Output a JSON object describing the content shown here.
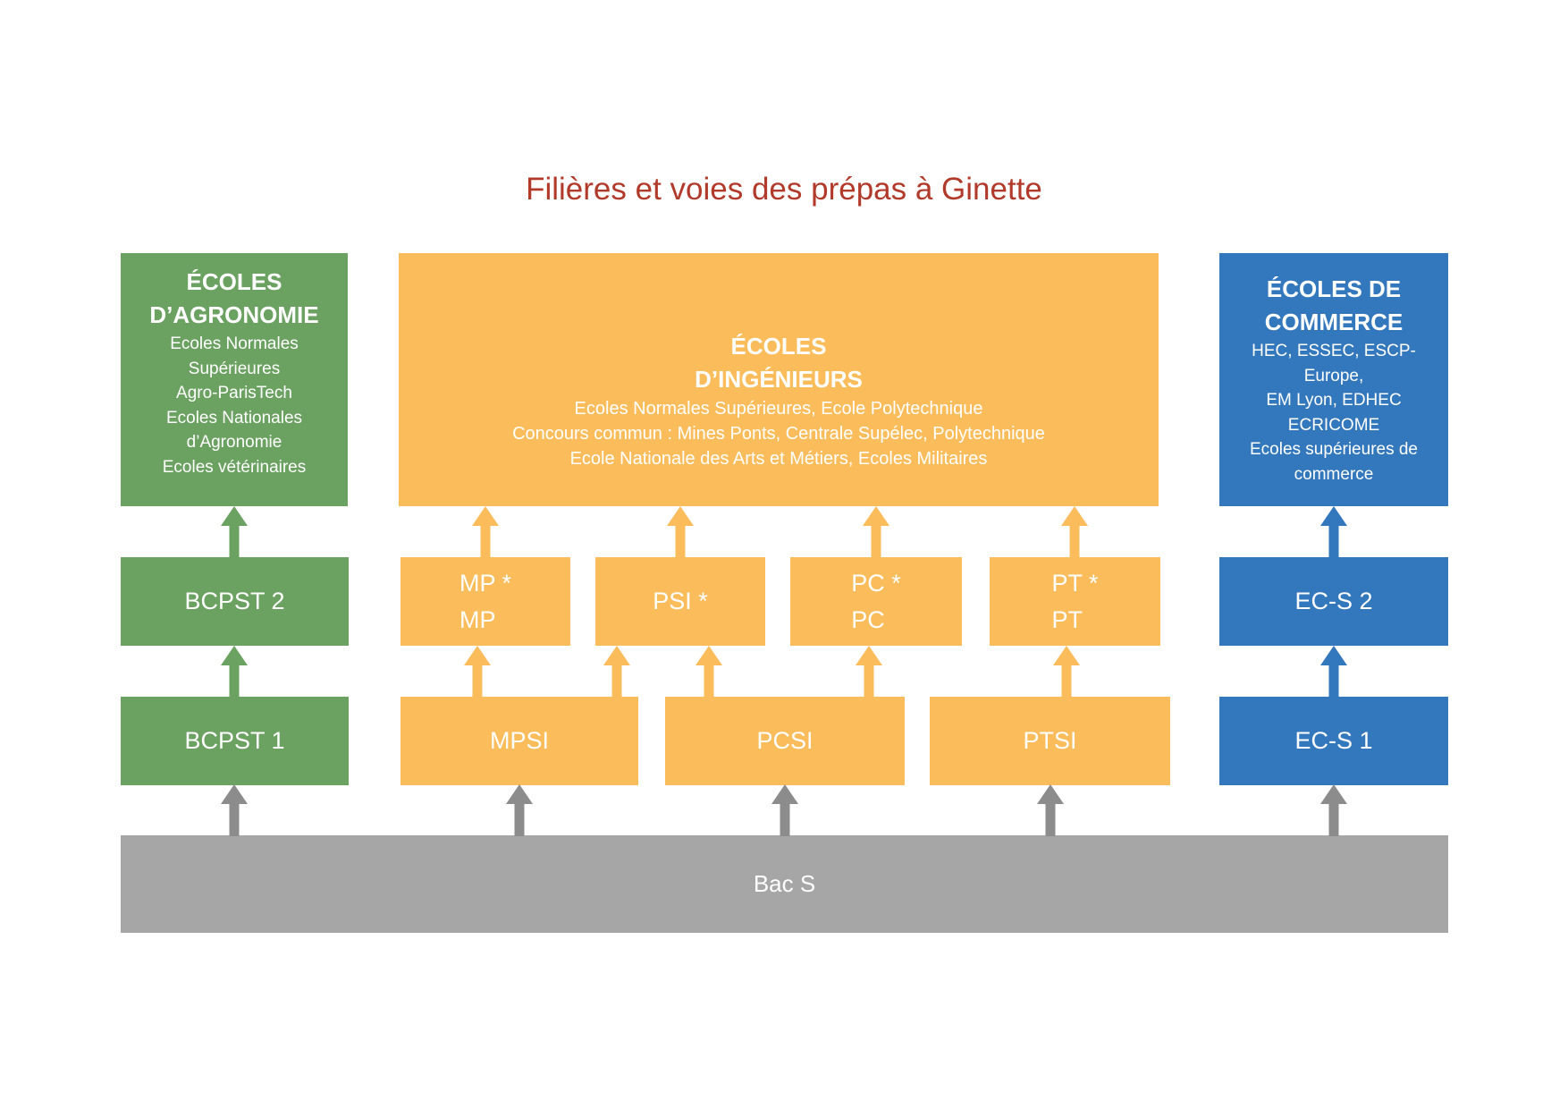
{
  "title": "Filières et voies des prépas à Ginette",
  "colors": {
    "green": "#6BA161",
    "orange": "#FBBD5C",
    "blue": "#3377BD",
    "gray_bar": "#A6A6A6",
    "gray_arrow": "#8C8C8C",
    "title_red": "#B13A2B"
  },
  "tracks": {
    "agronomie": {
      "top_box": {
        "title_lines": [
          "ÉCOLES",
          "D’AGRONOMIE"
        ],
        "body_lines": [
          "Ecoles Normales",
          "Supérieures",
          "Agro-ParisTech",
          "Ecoles Nationales",
          "d’Agronomie",
          "Ecoles vétérinaires"
        ]
      },
      "year2": "BCPST 2",
      "year1": "BCPST 1"
    },
    "ingenieurs": {
      "top_box": {
        "title_lines": [
          "ÉCOLES",
          "D’INGÉNIEURS"
        ],
        "body_lines": [
          "Ecoles Normales Supérieures, Ecole Polytechnique",
          "Concours commun : Mines Ponts, Centrale Supélec, Polytechnique",
          "Ecole Nationale des Arts et Métiers, Ecoles Militaires"
        ]
      },
      "year2": [
        {
          "lines": [
            "MP *",
            "MP"
          ]
        },
        {
          "lines": [
            "PSI *"
          ]
        },
        {
          "lines": [
            "PC *",
            "PC"
          ]
        },
        {
          "lines": [
            "PT *",
            "PT"
          ]
        }
      ],
      "year1": [
        "MPSI",
        "PCSI",
        "PTSI"
      ]
    },
    "commerce": {
      "top_box": {
        "title_lines": [
          "ÉCOLES DE",
          "COMMERCE"
        ],
        "body_lines": [
          "HEC, ESSEC, ESCP-",
          "Europe,",
          "EM Lyon, EDHEC",
          "ECRICOME",
          "Ecoles supérieures de",
          "commerce"
        ]
      },
      "year2": "EC-S 2",
      "year1": "EC-S 1"
    }
  },
  "baseline": {
    "label": "Bac S"
  }
}
